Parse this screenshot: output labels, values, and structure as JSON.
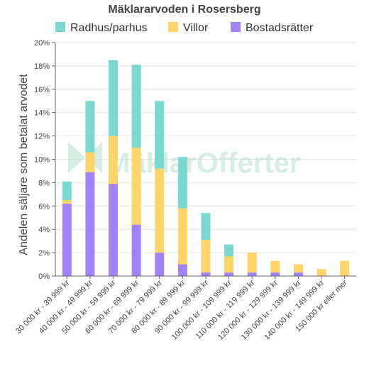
{
  "chart_data": {
    "type": "bar",
    "stacked": true,
    "title": "Mäklararvoden i Rosersberg",
    "ylabel": "Andelen säljare som betalat arvodet",
    "xlabel": "",
    "ylim": [
      0,
      20
    ],
    "y_ticks": [
      "0%",
      "2%",
      "4%",
      "6%",
      "8%",
      "10%",
      "12%",
      "14%",
      "16%",
      "18%",
      "20%"
    ],
    "grid": true,
    "legend_position": "top",
    "categories": [
      "30 000 kr - 39 999 kr",
      "40 000 kr - 49 999 kr",
      "50 000 kr - 59 999 kr",
      "60 000 kr - 69 999 kr",
      "70 000 kr - 79 999 kr",
      "80 000 kr - 89 999 kr",
      "90 000 kr - 99 999 kr",
      "100 000 kr - 109 999 kr",
      "110 000 kr - 119 999 kr",
      "120 000 kr - 129 999 kr",
      "130 000 kr - 139 999 kr",
      "140 000 kr - 149 999 kr",
      "150 000 kr eller mer"
    ],
    "series": [
      {
        "name": "Bostadsrätter",
        "color": "#a283f6",
        "values": [
          6.2,
          8.9,
          7.9,
          4.4,
          2.0,
          1.0,
          0.3,
          0.3,
          0.3,
          0.3,
          0.3,
          0.0,
          0.0
        ]
      },
      {
        "name": "Villor",
        "color": "#fdd56c",
        "values": [
          0.3,
          1.7,
          4.1,
          6.6,
          7.2,
          4.8,
          2.8,
          1.4,
          1.7,
          1.0,
          0.7,
          0.6,
          1.3
        ]
      },
      {
        "name": "Radhus/parhus",
        "color": "#7bd8cf",
        "values": [
          1.6,
          4.4,
          6.5,
          7.1,
          5.8,
          4.4,
          2.3,
          1.0,
          0.0,
          0.0,
          0.0,
          0.0,
          0.0
        ]
      }
    ],
    "legend_order": [
      "Radhus/parhus",
      "Villor",
      "Bostadsrätter"
    ]
  },
  "watermark": {
    "text": "MäklarOfferter",
    "color": "#b9dfcc"
  },
  "colors": {
    "grid": "#e6e6e6",
    "axis": "#666666"
  }
}
